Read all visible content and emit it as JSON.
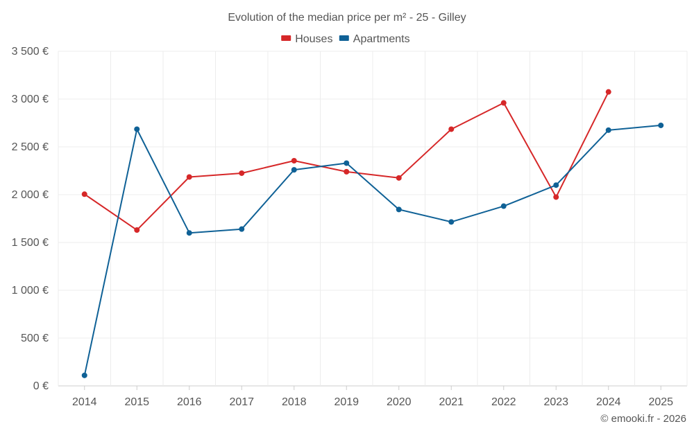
{
  "chart_data": {
    "type": "line",
    "title": "Evolution of the median price per m² - 25 - Gilley",
    "categories": [
      "2014",
      "2015",
      "2016",
      "2017",
      "2018",
      "2019",
      "2020",
      "2021",
      "2022",
      "2023",
      "2024",
      "2025"
    ],
    "ylim": [
      0,
      3500
    ],
    "yticks": [
      0,
      500,
      1000,
      1500,
      2000,
      2500,
      3000,
      3500
    ],
    "ytick_labels": [
      "0 €",
      "500 €",
      "1 000 €",
      "1 500 €",
      "2 000 €",
      "2 500 €",
      "3 000 €",
      "3 500 €"
    ],
    "legend_position": "top-center",
    "grid": true,
    "series": [
      {
        "name": "Houses",
        "color": "#d62728",
        "values": [
          2005,
          1630,
          2185,
          2225,
          2355,
          2240,
          2175,
          2685,
          2960,
          1975,
          3075,
          null
        ]
      },
      {
        "name": "Apartments",
        "color": "#0f6196",
        "values": [
          110,
          2685,
          1600,
          1640,
          2260,
          2330,
          1845,
          1715,
          1880,
          2100,
          2675,
          2725
        ]
      }
    ]
  },
  "credit": "© emooki.fr - 2026"
}
